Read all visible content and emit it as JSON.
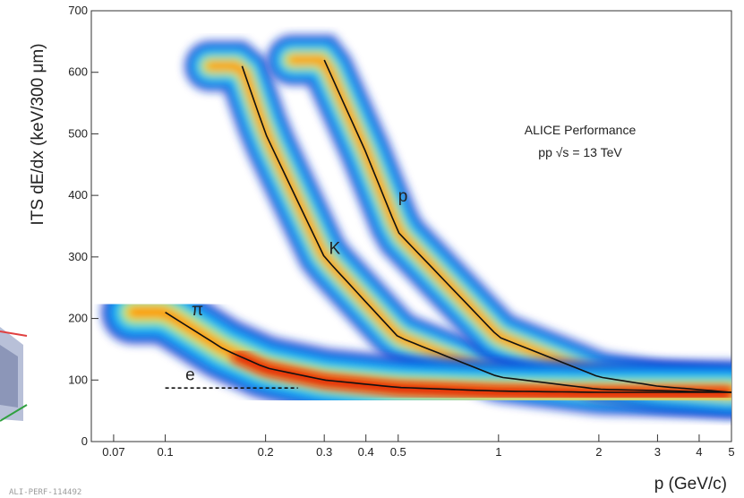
{
  "chart_data": {
    "type": "heatmap",
    "title": "",
    "annotation": [
      "ALICE Performance",
      "pp √s = 13 TeV"
    ],
    "xlabel": "p (GeV/c)",
    "ylabel": "ITS dE/dx (keV/300 μm)",
    "xscale": "log",
    "xlim": [
      0.06,
      5.0
    ],
    "ylim": [
      0,
      700
    ],
    "grid": false,
    "xticks": [
      0.07,
      0.1,
      0.2,
      0.3,
      0.4,
      0.5,
      1,
      2,
      3,
      4,
      5
    ],
    "xtick_labels": [
      "0.07",
      "0.1",
      "0.2",
      "0.3",
      "0.4",
      "0.5",
      "1",
      "2",
      "3",
      "4",
      "5"
    ],
    "yticks": [
      0,
      100,
      200,
      300,
      400,
      500,
      600,
      700
    ],
    "ytick_labels": [
      "0",
      "100",
      "200",
      "300",
      "400",
      "500",
      "600",
      "700"
    ],
    "bands": [
      {
        "name": "π",
        "x": [
          0.1,
          0.15,
          0.2,
          0.3,
          0.5,
          1,
          2,
          5
        ],
        "y": [
          210,
          150,
          120,
          100,
          88,
          82,
          80,
          80
        ]
      },
      {
        "name": "K",
        "x": [
          0.17,
          0.2,
          0.3,
          0.5,
          1,
          2,
          5
        ],
        "y": [
          610,
          500,
          300,
          170,
          105,
          85,
          80
        ]
      },
      {
        "name": "p",
        "x": [
          0.3,
          0.4,
          0.5,
          1,
          2,
          3,
          5
        ],
        "y": [
          620,
          470,
          340,
          170,
          105,
          90,
          80
        ]
      },
      {
        "name": "e",
        "x": [
          0.1,
          0.2,
          0.25
        ],
        "y": [
          87,
          87,
          87
        ]
      }
    ],
    "curve_labels": [
      {
        "text": "π",
        "x": 0.12,
        "y": 205
      },
      {
        "text": "K",
        "x": 0.31,
        "y": 305
      },
      {
        "text": "p",
        "x": 0.5,
        "y": 390
      },
      {
        "text": "e",
        "x": 0.115,
        "y": 100
      }
    ],
    "reference": "ALI-PERF-114492"
  },
  "colors": {
    "scale": [
      "#1a3bd0",
      "#00a0ff",
      "#30d8e0",
      "#a0f060",
      "#ffe020",
      "#ff8000",
      "#e01000"
    ],
    "curve": "#111111",
    "axis": "#333333"
  }
}
